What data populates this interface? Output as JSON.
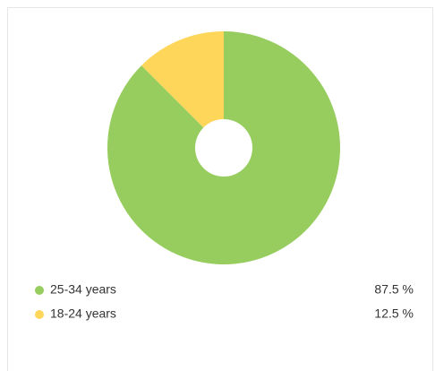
{
  "chart_data": {
    "type": "pie",
    "categories": [
      "25-34 years",
      "18-24 years"
    ],
    "values": [
      87.5,
      12.5
    ],
    "value_labels": [
      "87.5 %",
      "12.5 %"
    ],
    "colors": [
      "#97cd5e",
      "#fdd65a"
    ],
    "donut": true
  }
}
